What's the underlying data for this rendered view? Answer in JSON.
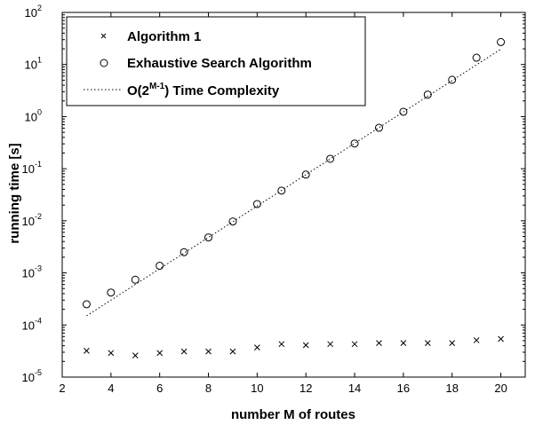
{
  "chart_data": {
    "type": "scatter",
    "xlabel": "number M of routes",
    "ylabel": "running time [s]",
    "xlim": [
      2,
      21
    ],
    "ylim_log10": [
      -5,
      2
    ],
    "yscale": "log",
    "grid": false,
    "legend_position": "top-left",
    "x_ticks": [
      "2",
      "4",
      "6",
      "8",
      "10",
      "12",
      "14",
      "16",
      "18",
      "20"
    ],
    "y_ticks": [
      {
        "base": "10",
        "exp": "-5"
      },
      {
        "base": "10",
        "exp": "-4"
      },
      {
        "base": "10",
        "exp": "-3"
      },
      {
        "base": "10",
        "exp": "-2"
      },
      {
        "base": "10",
        "exp": "-1"
      },
      {
        "base": "10",
        "exp": "0"
      },
      {
        "base": "10",
        "exp": "1"
      },
      {
        "base": "10",
        "exp": "2"
      }
    ],
    "legend": {
      "alg1": "Algorithm 1",
      "exhaustive": "Exhaustive Search Algorithm",
      "complexity_prefix": "O(2",
      "complexity_sup": "M-1",
      "complexity_suffix": ") Time Complexity"
    },
    "series": [
      {
        "name": "Algorithm 1",
        "marker": "x",
        "x": [
          3,
          4,
          5,
          6,
          7,
          8,
          9,
          10,
          11,
          12,
          13,
          14,
          15,
          16,
          17,
          18,
          19,
          20
        ],
        "y": [
          3.2e-05,
          2.9e-05,
          2.6e-05,
          2.9e-05,
          3.1e-05,
          3.1e-05,
          3.1e-05,
          3.7e-05,
          4.3e-05,
          4.1e-05,
          4.3e-05,
          4.3e-05,
          4.5e-05,
          4.5e-05,
          4.5e-05,
          4.5e-05,
          5.1e-05,
          5.4e-05
        ]
      },
      {
        "name": "Exhaustive Search Algorithm",
        "marker": "o",
        "x": [
          3,
          4,
          5,
          6,
          7,
          8,
          9,
          10,
          11,
          12,
          13,
          14,
          15,
          16,
          17,
          18,
          19,
          20
        ],
        "y": [
          0.00025,
          0.00042,
          0.00074,
          0.00137,
          0.0025,
          0.0048,
          0.0097,
          0.021,
          0.038,
          0.077,
          0.155,
          0.305,
          0.61,
          1.24,
          2.65,
          5.1,
          13.5,
          27
        ]
      },
      {
        "name": "O(2^(M-1)) Time Complexity",
        "style": "dotted",
        "x": [
          3,
          20
        ],
        "y": [
          0.00015,
          19.7
        ]
      }
    ]
  }
}
